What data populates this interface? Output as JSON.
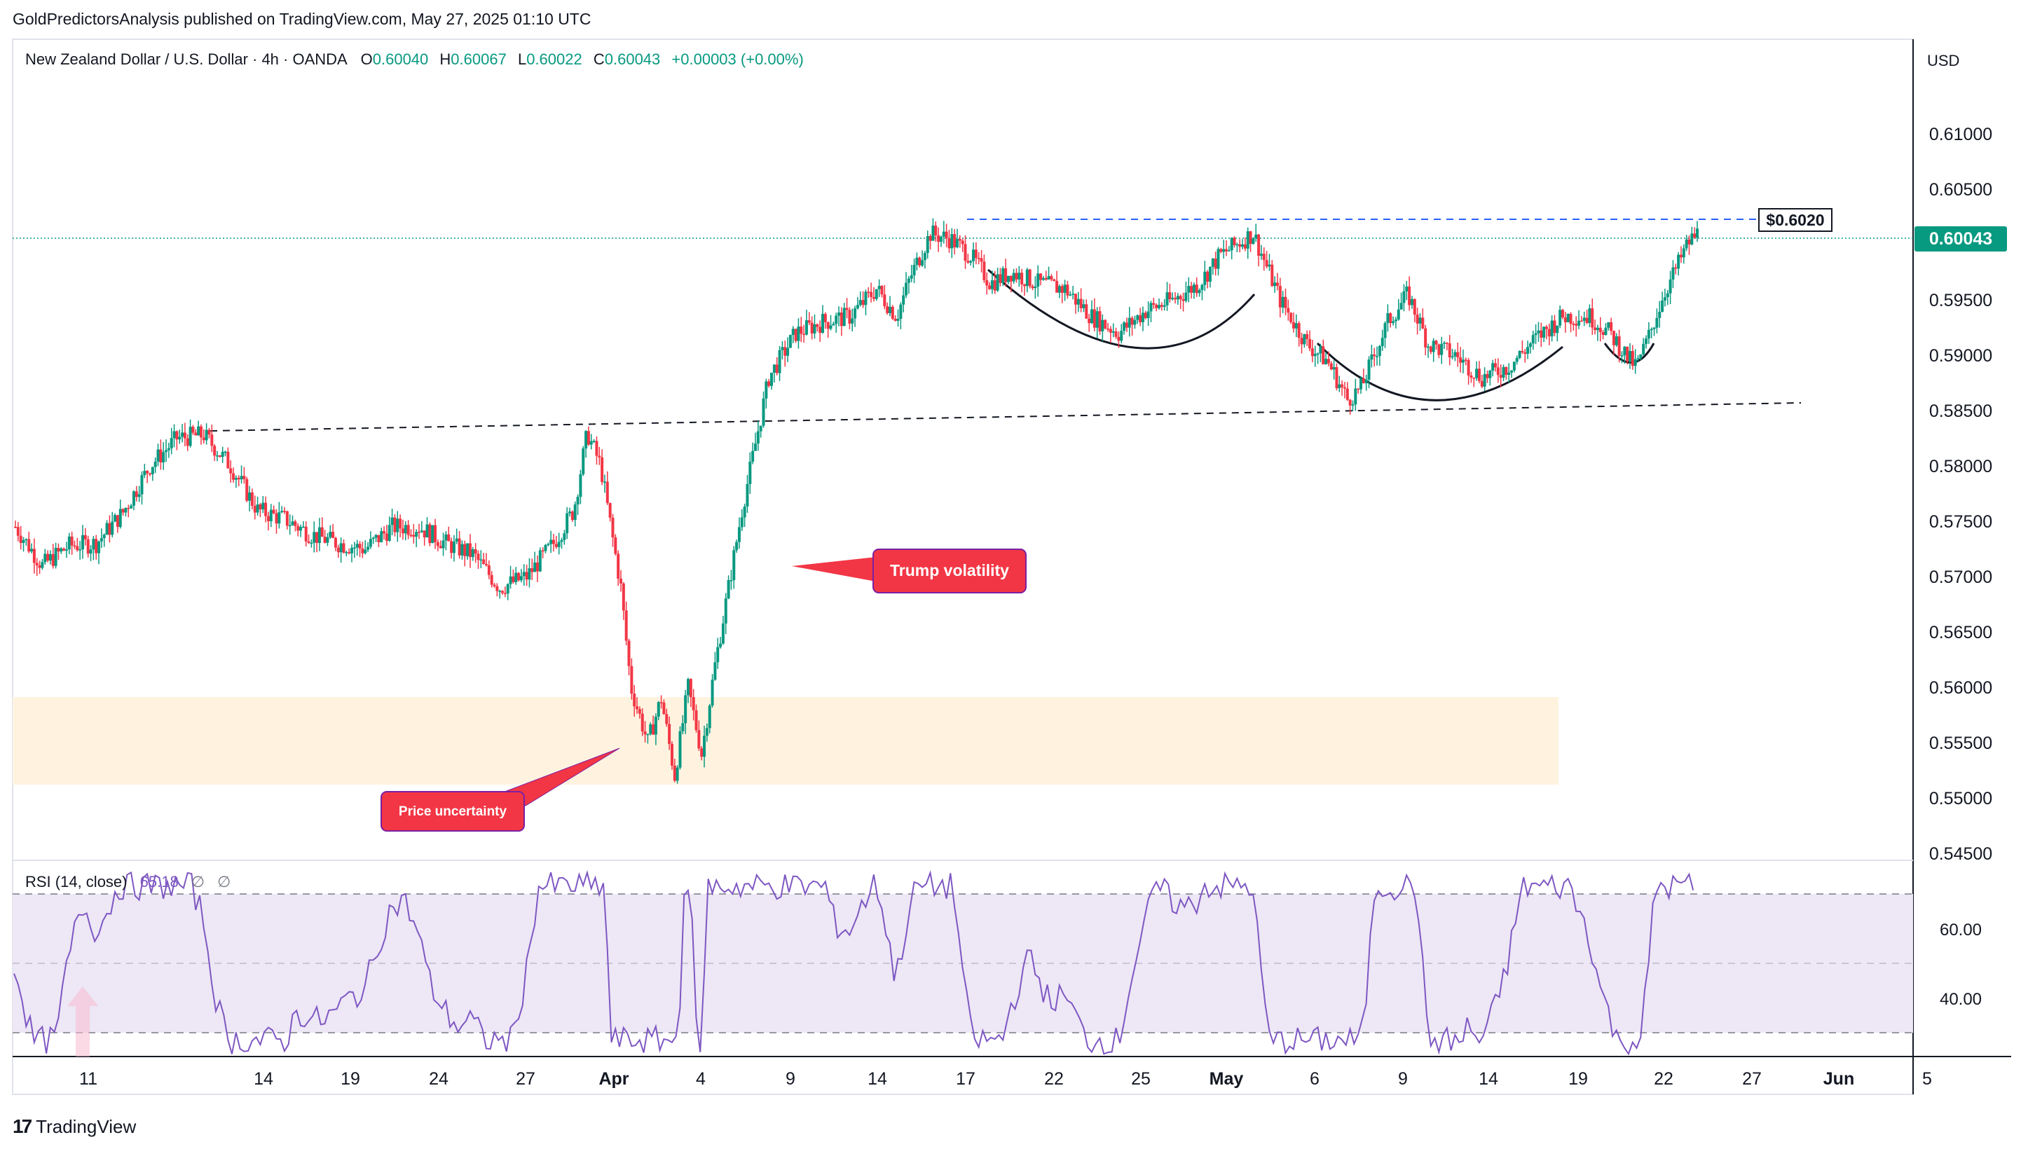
{
  "publisher": "GoldPredictorsAnalysis published on TradingView.com, May 27, 2025 01:10 UTC",
  "symbol": {
    "name": "New Zealand Dollar / U.S. Dollar · 4h · OANDA",
    "open_label": "O",
    "open": "0.60040",
    "high_label": "H",
    "high": "0.60067",
    "low_label": "L",
    "low": "0.60022",
    "close_label": "C",
    "close": "0.60043",
    "change": "+0.00003 (+0.00%)"
  },
  "currency": "USD",
  "price_ticks": [
    "0.61000",
    "0.60500",
    "0.60000",
    "0.59500",
    "0.59000",
    "0.58500",
    "0.58000",
    "0.57500",
    "0.57000",
    "0.56500",
    "0.56000",
    "0.55500",
    "0.55000",
    "0.54500"
  ],
  "current_price_badge": "0.60043",
  "resistance_label": "$0.6020",
  "annotations": {
    "trump": "Trump volatility",
    "price": "Price uncertainty"
  },
  "rsi": {
    "label": "RSI (14, close)",
    "value": "65.18",
    "na1": "∅",
    "na2": "∅",
    "ticks": [
      "60.00",
      "40.00"
    ]
  },
  "time_ticks": [
    "11",
    "14",
    "19",
    "24",
    "27",
    "Apr",
    "4",
    "9",
    "14",
    "17",
    "22",
    "25",
    "May",
    "6",
    "9",
    "14",
    "19",
    "22",
    "27",
    "Jun",
    "5"
  ],
  "footer": "TradingView",
  "colors": {
    "up": "#089981",
    "down": "#f23645",
    "rsi_line": "#7e57c2",
    "rsi_band": "#ede7f6",
    "zone": "#fff3e0",
    "badge": "#089981",
    "annotation": "#f23645",
    "resistance": "#2962ff"
  },
  "chart_data": {
    "type": "candlestick",
    "title": "New Zealand Dollar / U.S. Dollar · 4h · OANDA",
    "ylim": [
      0.5425,
      0.6135
    ],
    "close_path": [
      [
        0,
        0.5745
      ],
      [
        40,
        0.571
      ],
      [
        80,
        0.5728
      ],
      [
        120,
        0.573
      ],
      [
        160,
        0.5758
      ],
      [
        200,
        0.58
      ],
      [
        240,
        0.5825
      ],
      [
        280,
        0.5828
      ],
      [
        320,
        0.58
      ],
      [
        360,
        0.576
      ],
      [
        400,
        0.5752
      ],
      [
        440,
        0.5738
      ],
      [
        480,
        0.573
      ],
      [
        520,
        0.5725
      ],
      [
        560,
        0.5745
      ],
      [
        600,
        0.5745
      ],
      [
        640,
        0.573
      ],
      [
        680,
        0.572
      ],
      [
        720,
        0.569
      ],
      [
        760,
        0.57
      ],
      [
        800,
        0.573
      ],
      [
        830,
        0.576
      ],
      [
        850,
        0.583
      ],
      [
        870,
        0.58
      ],
      [
        900,
        0.569
      ],
      [
        915,
        0.56
      ],
      [
        940,
        0.555
      ],
      [
        960,
        0.559
      ],
      [
        980,
        0.552
      ],
      [
        1000,
        0.56
      ],
      [
        1020,
        0.554
      ],
      [
        1040,
        0.562
      ],
      [
        1060,
        0.569
      ],
      [
        1080,
        0.576
      ],
      [
        1100,
        0.582
      ],
      [
        1120,
        0.588
      ],
      [
        1160,
        0.592
      ],
      [
        1200,
        0.593
      ],
      [
        1240,
        0.5935
      ],
      [
        1280,
        0.596
      ],
      [
        1310,
        0.5935
      ],
      [
        1330,
        0.597
      ],
      [
        1360,
        0.601
      ],
      [
        1390,
        0.6005
      ],
      [
        1420,
        0.599
      ],
      [
        1450,
        0.5965
      ],
      [
        1480,
        0.5975
      ],
      [
        1520,
        0.5965
      ],
      [
        1560,
        0.596
      ],
      [
        1600,
        0.5935
      ],
      [
        1640,
        0.592
      ],
      [
        1680,
        0.594
      ],
      [
        1720,
        0.595
      ],
      [
        1760,
        0.5965
      ],
      [
        1790,
        0.599
      ],
      [
        1815,
        0.6
      ],
      [
        1840,
        0.601
      ],
      [
        1880,
        0.595
      ],
      [
        1920,
        0.591
      ],
      [
        1950,
        0.5895
      ],
      [
        1980,
        0.586
      ],
      [
        2000,
        0.587
      ],
      [
        2040,
        0.593
      ],
      [
        2070,
        0.5955
      ],
      [
        2100,
        0.591
      ],
      [
        2140,
        0.59
      ],
      [
        2180,
        0.588
      ],
      [
        2220,
        0.589
      ],
      [
        2260,
        0.5915
      ],
      [
        2300,
        0.5935
      ],
      [
        2340,
        0.5935
      ],
      [
        2370,
        0.592
      ],
      [
        2400,
        0.5895
      ],
      [
        2410,
        0.589
      ],
      [
        2430,
        0.592
      ],
      [
        2450,
        0.5955
      ],
      [
        2470,
        0.598
      ],
      [
        2485,
        0.6
      ],
      [
        2500,
        0.601
      ]
    ],
    "resistance": 0.602,
    "support_trend": [
      [
        0.5832,
        0.5855
      ]
    ],
    "demand_zone": [
      0.551,
      0.559
    ]
  }
}
